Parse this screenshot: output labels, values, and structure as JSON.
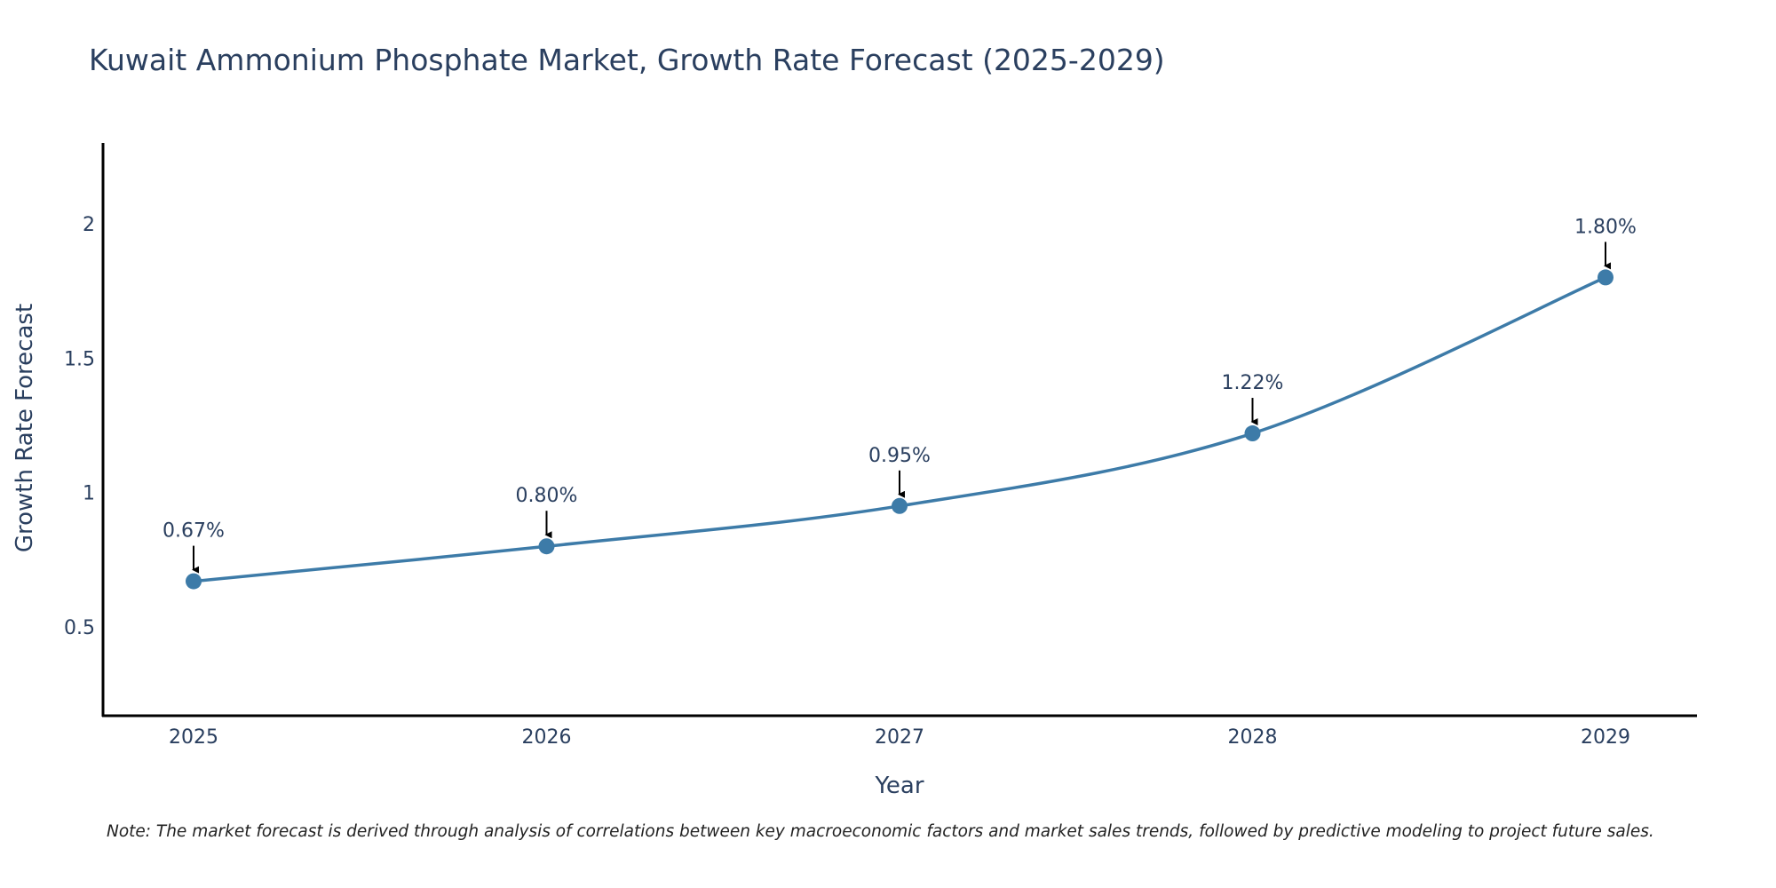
{
  "colors": {
    "line": "#3d7ba8",
    "marker": "#3d7ba8",
    "axis": "#000000",
    "arrow": "#000000",
    "text": "#2a3f5f"
  },
  "chart_data": {
    "type": "line",
    "title": "Kuwait Ammonium Phosphate Market, Growth Rate Forecast (2025-2029)",
    "xlabel": "Year",
    "ylabel": "Growth Rate Forecast",
    "categories": [
      "2025",
      "2026",
      "2027",
      "2028",
      "2029"
    ],
    "series": [
      {
        "name": "Growth Rate Forecast",
        "values": [
          0.67,
          0.8,
          0.95,
          1.22,
          1.8
        ],
        "labels": [
          "0.67%",
          "0.80%",
          "0.95%",
          "1.22%",
          "1.80%"
        ]
      }
    ],
    "ylim": [
      0.17,
      2.3
    ],
    "yticks": [
      0.5,
      1,
      1.5,
      2
    ],
    "ytick_labels": [
      "0.5",
      "1",
      "1.5",
      "2"
    ],
    "grid": false,
    "line_shape": "spline",
    "note": "Note: The market forecast is derived through analysis of correlations between key macroeconomic factors and market sales trends, followed by predictive modeling to project future sales."
  }
}
